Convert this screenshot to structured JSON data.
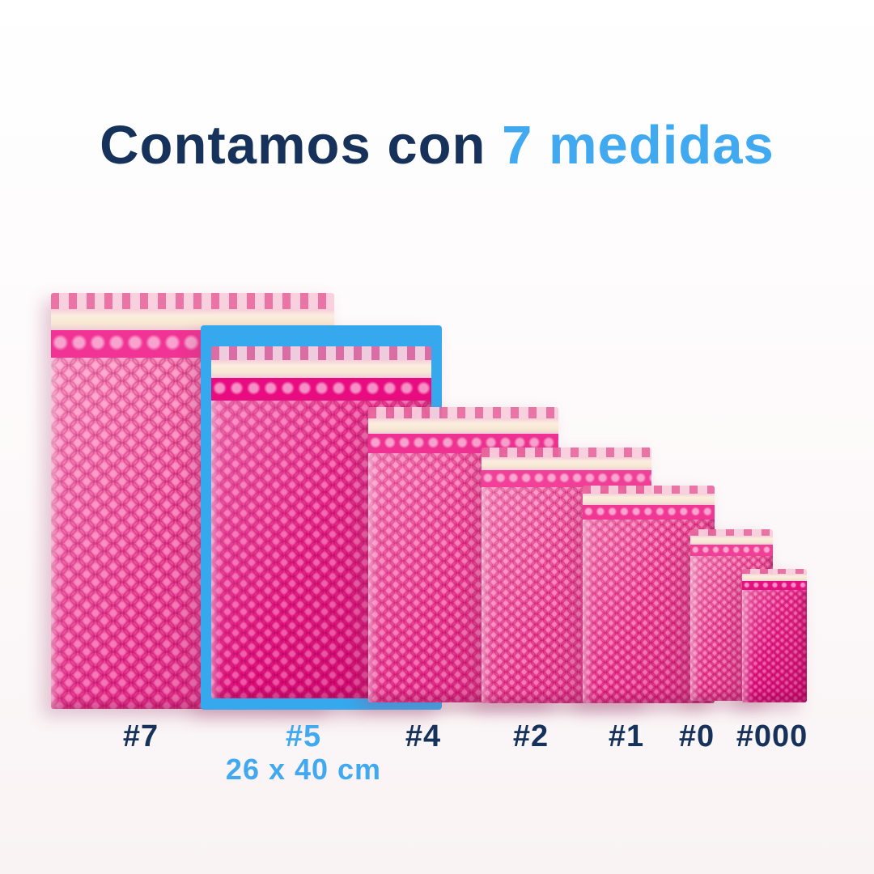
{
  "title": {
    "prefix": "Contamos con",
    "highlight": "7 medidas"
  },
  "selected": {
    "label": "#5",
    "dimensions": "26 x 40 cm"
  },
  "sizes": [
    {
      "label": "#7",
      "highlighted": false
    },
    {
      "label": "#5",
      "highlighted": true
    },
    {
      "label": "#4",
      "highlighted": false
    },
    {
      "label": "#2",
      "highlighted": false
    },
    {
      "label": "#1",
      "highlighted": false
    },
    {
      "label": "#0",
      "highlighted": false
    },
    {
      "label": "#000",
      "highlighted": false
    }
  ],
  "colors": {
    "title_navy": "#16325B",
    "accent_blue": "#41A9F0",
    "highlight_frame_blue": "#36A9EE",
    "envelope_pink_light": "#FB5FA8",
    "envelope_pink_deep": "#E90C81",
    "flap_pink": "#F6C3D4",
    "adhesive_cream": "#F8EDDC",
    "background": "#FDF9FA"
  }
}
